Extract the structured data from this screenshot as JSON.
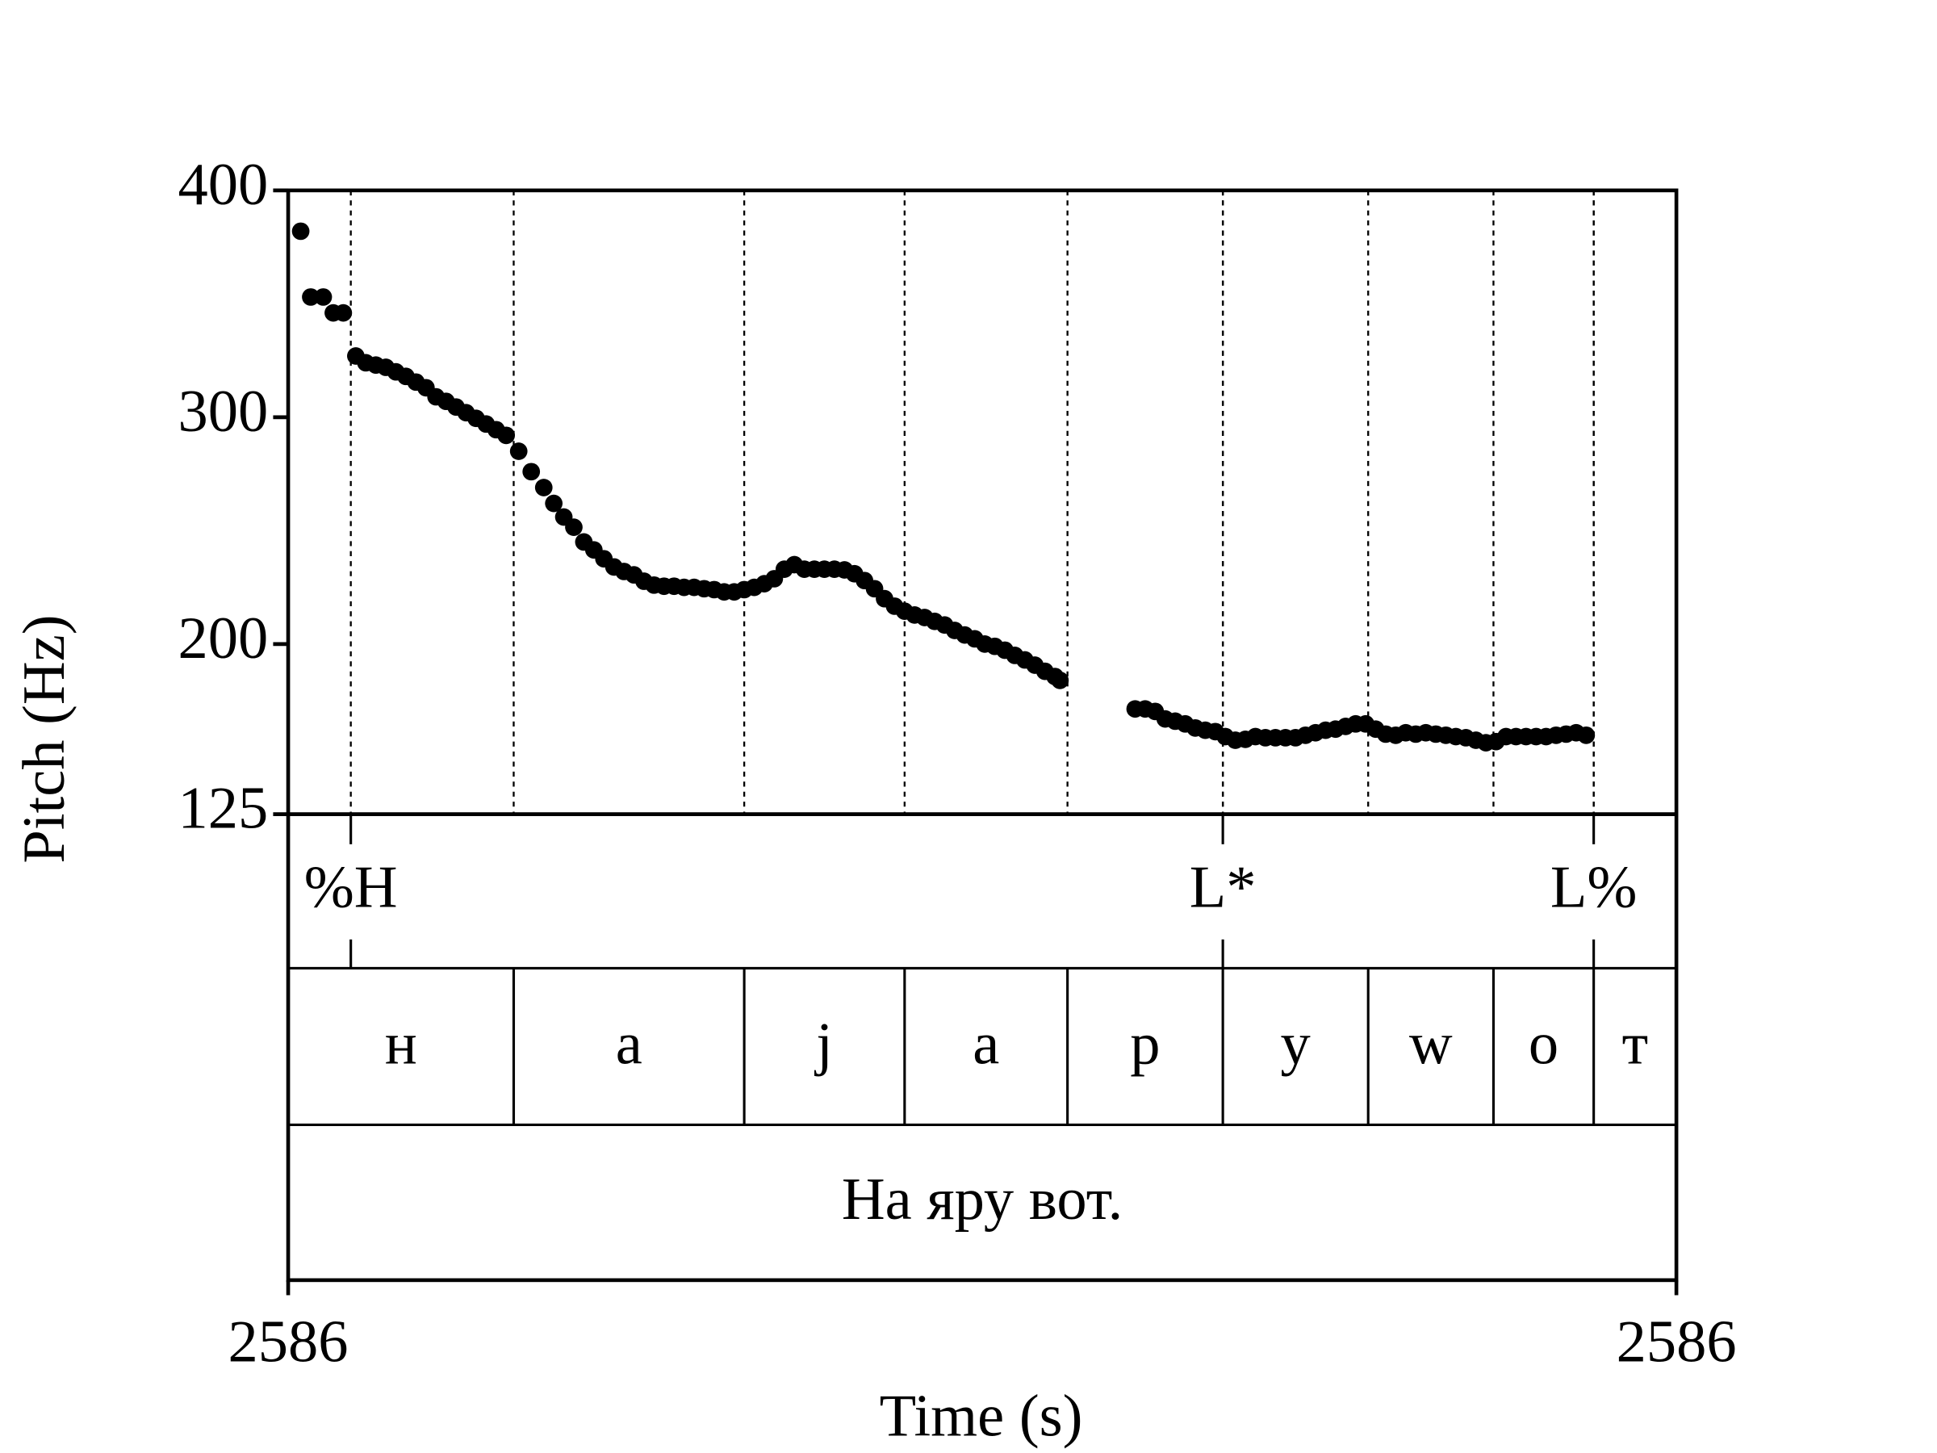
{
  "chart_data": {
    "type": "scatter",
    "x_label": "Time (s)",
    "y_label": "Pitch (Hz)",
    "xlim": [
      2585.85,
      2586.404
    ],
    "xticks": [
      {
        "value": 2585.85,
        "label": "2586"
      },
      {
        "value": 2586.404,
        "label": "2586"
      }
    ],
    "ylim": [
      125,
      400
    ],
    "yticks": [
      125,
      200,
      300,
      400
    ],
    "color": "#000000",
    "x": [
      2585.855,
      2585.859,
      2585.864,
      2585.868,
      2585.872,
      2585.877,
      2585.881,
      2585.885,
      2585.889,
      2585.893,
      2585.897,
      2585.901,
      2585.905,
      2585.909,
      2585.913,
      2585.917,
      2585.921,
      2585.925,
      2585.929,
      2585.933,
      2585.937,
      2585.942,
      2585.947,
      2585.952,
      2585.956,
      2585.96,
      2585.964,
      2585.968,
      2585.972,
      2585.976,
      2585.98,
      2585.984,
      2585.988,
      2585.992,
      2585.996,
      2586.0,
      2586.004,
      2586.008,
      2586.012,
      2586.016,
      2586.02,
      2586.024,
      2586.028,
      2586.032,
      2586.036,
      2586.04,
      2586.044,
      2586.048,
      2586.052,
      2586.056,
      2586.06,
      2586.064,
      2586.068,
      2586.072,
      2586.076,
      2586.08,
      2586.084,
      2586.088,
      2586.092,
      2586.096,
      2586.1,
      2586.104,
      2586.108,
      2586.112,
      2586.116,
      2586.12,
      2586.124,
      2586.128,
      2586.132,
      2586.136,
      2586.14,
      2586.144,
      2586.148,
      2586.152,
      2586.156,
      2586.158,
      2586.188,
      2586.192,
      2586.196,
      2586.2,
      2586.204,
      2586.208,
      2586.212,
      2586.216,
      2586.22,
      2586.224,
      2586.228,
      2586.232,
      2586.236,
      2586.24,
      2586.244,
      2586.248,
      2586.252,
      2586.256,
      2586.26,
      2586.264,
      2586.268,
      2586.272,
      2586.276,
      2586.28,
      2586.284,
      2586.288,
      2586.292,
      2586.296,
      2586.3,
      2586.304,
      2586.308,
      2586.312,
      2586.316,
      2586.32,
      2586.324,
      2586.328,
      2586.332,
      2586.336,
      2586.34,
      2586.344,
      2586.348,
      2586.352,
      2586.356,
      2586.36,
      2586.364,
      2586.368
    ],
    "values": [
      382,
      353,
      353,
      346,
      346,
      327,
      324,
      323,
      322,
      320,
      318,
      315.5,
      313,
      309,
      307,
      304.5,
      302,
      299.5,
      297,
      294.5,
      292,
      285,
      276,
      269,
      262,
      256,
      251.5,
      245,
      241.5,
      237.6,
      234,
      232,
      230.5,
      227.7,
      226,
      225.5,
      225.5,
      225,
      225,
      224.4,
      224,
      223,
      223,
      224,
      225,
      226.6,
      228.8,
      233,
      235,
      233,
      233,
      233,
      233,
      232.7,
      231,
      228,
      224.4,
      220,
      216.7,
      214.5,
      212.8,
      211.7,
      210,
      208.4,
      206,
      204,
      202.3,
      200,
      199,
      197.3,
      195,
      193,
      190.7,
      188,
      185.7,
      184,
      171.4,
      171.4,
      170.3,
      167,
      166,
      164.8,
      163,
      162,
      161.4,
      159.2,
      157.6,
      158,
      159.2,
      158.7,
      158.7,
      158.7,
      158.7,
      159.8,
      160.9,
      162,
      162.5,
      163.7,
      164.8,
      164.8,
      162.5,
      160.3,
      159.8,
      160.9,
      160.3,
      160.9,
      160.3,
      159.8,
      159.2,
      158.7,
      157.6,
      156.5,
      157,
      159.2,
      159.2,
      159.2,
      159.2,
      159.2,
      159.8,
      160.3,
      160.9,
      159.8
    ],
    "tone_tier": {
      "times": [
        2585.875,
        2586.223,
        2586.371
      ],
      "labels": [
        "%H",
        "L*",
        "L%"
      ]
    },
    "segment_tier": {
      "boundaries": [
        2585.94,
        2586.032,
        2586.096,
        2586.161,
        2586.223,
        2586.281,
        2586.331,
        2586.371
      ],
      "labels": [
        "н",
        "а",
        "j",
        "а",
        "р",
        "у",
        "w",
        "о",
        "т"
      ]
    },
    "word_tier": {
      "labels": [
        "На яру вот."
      ]
    }
  }
}
